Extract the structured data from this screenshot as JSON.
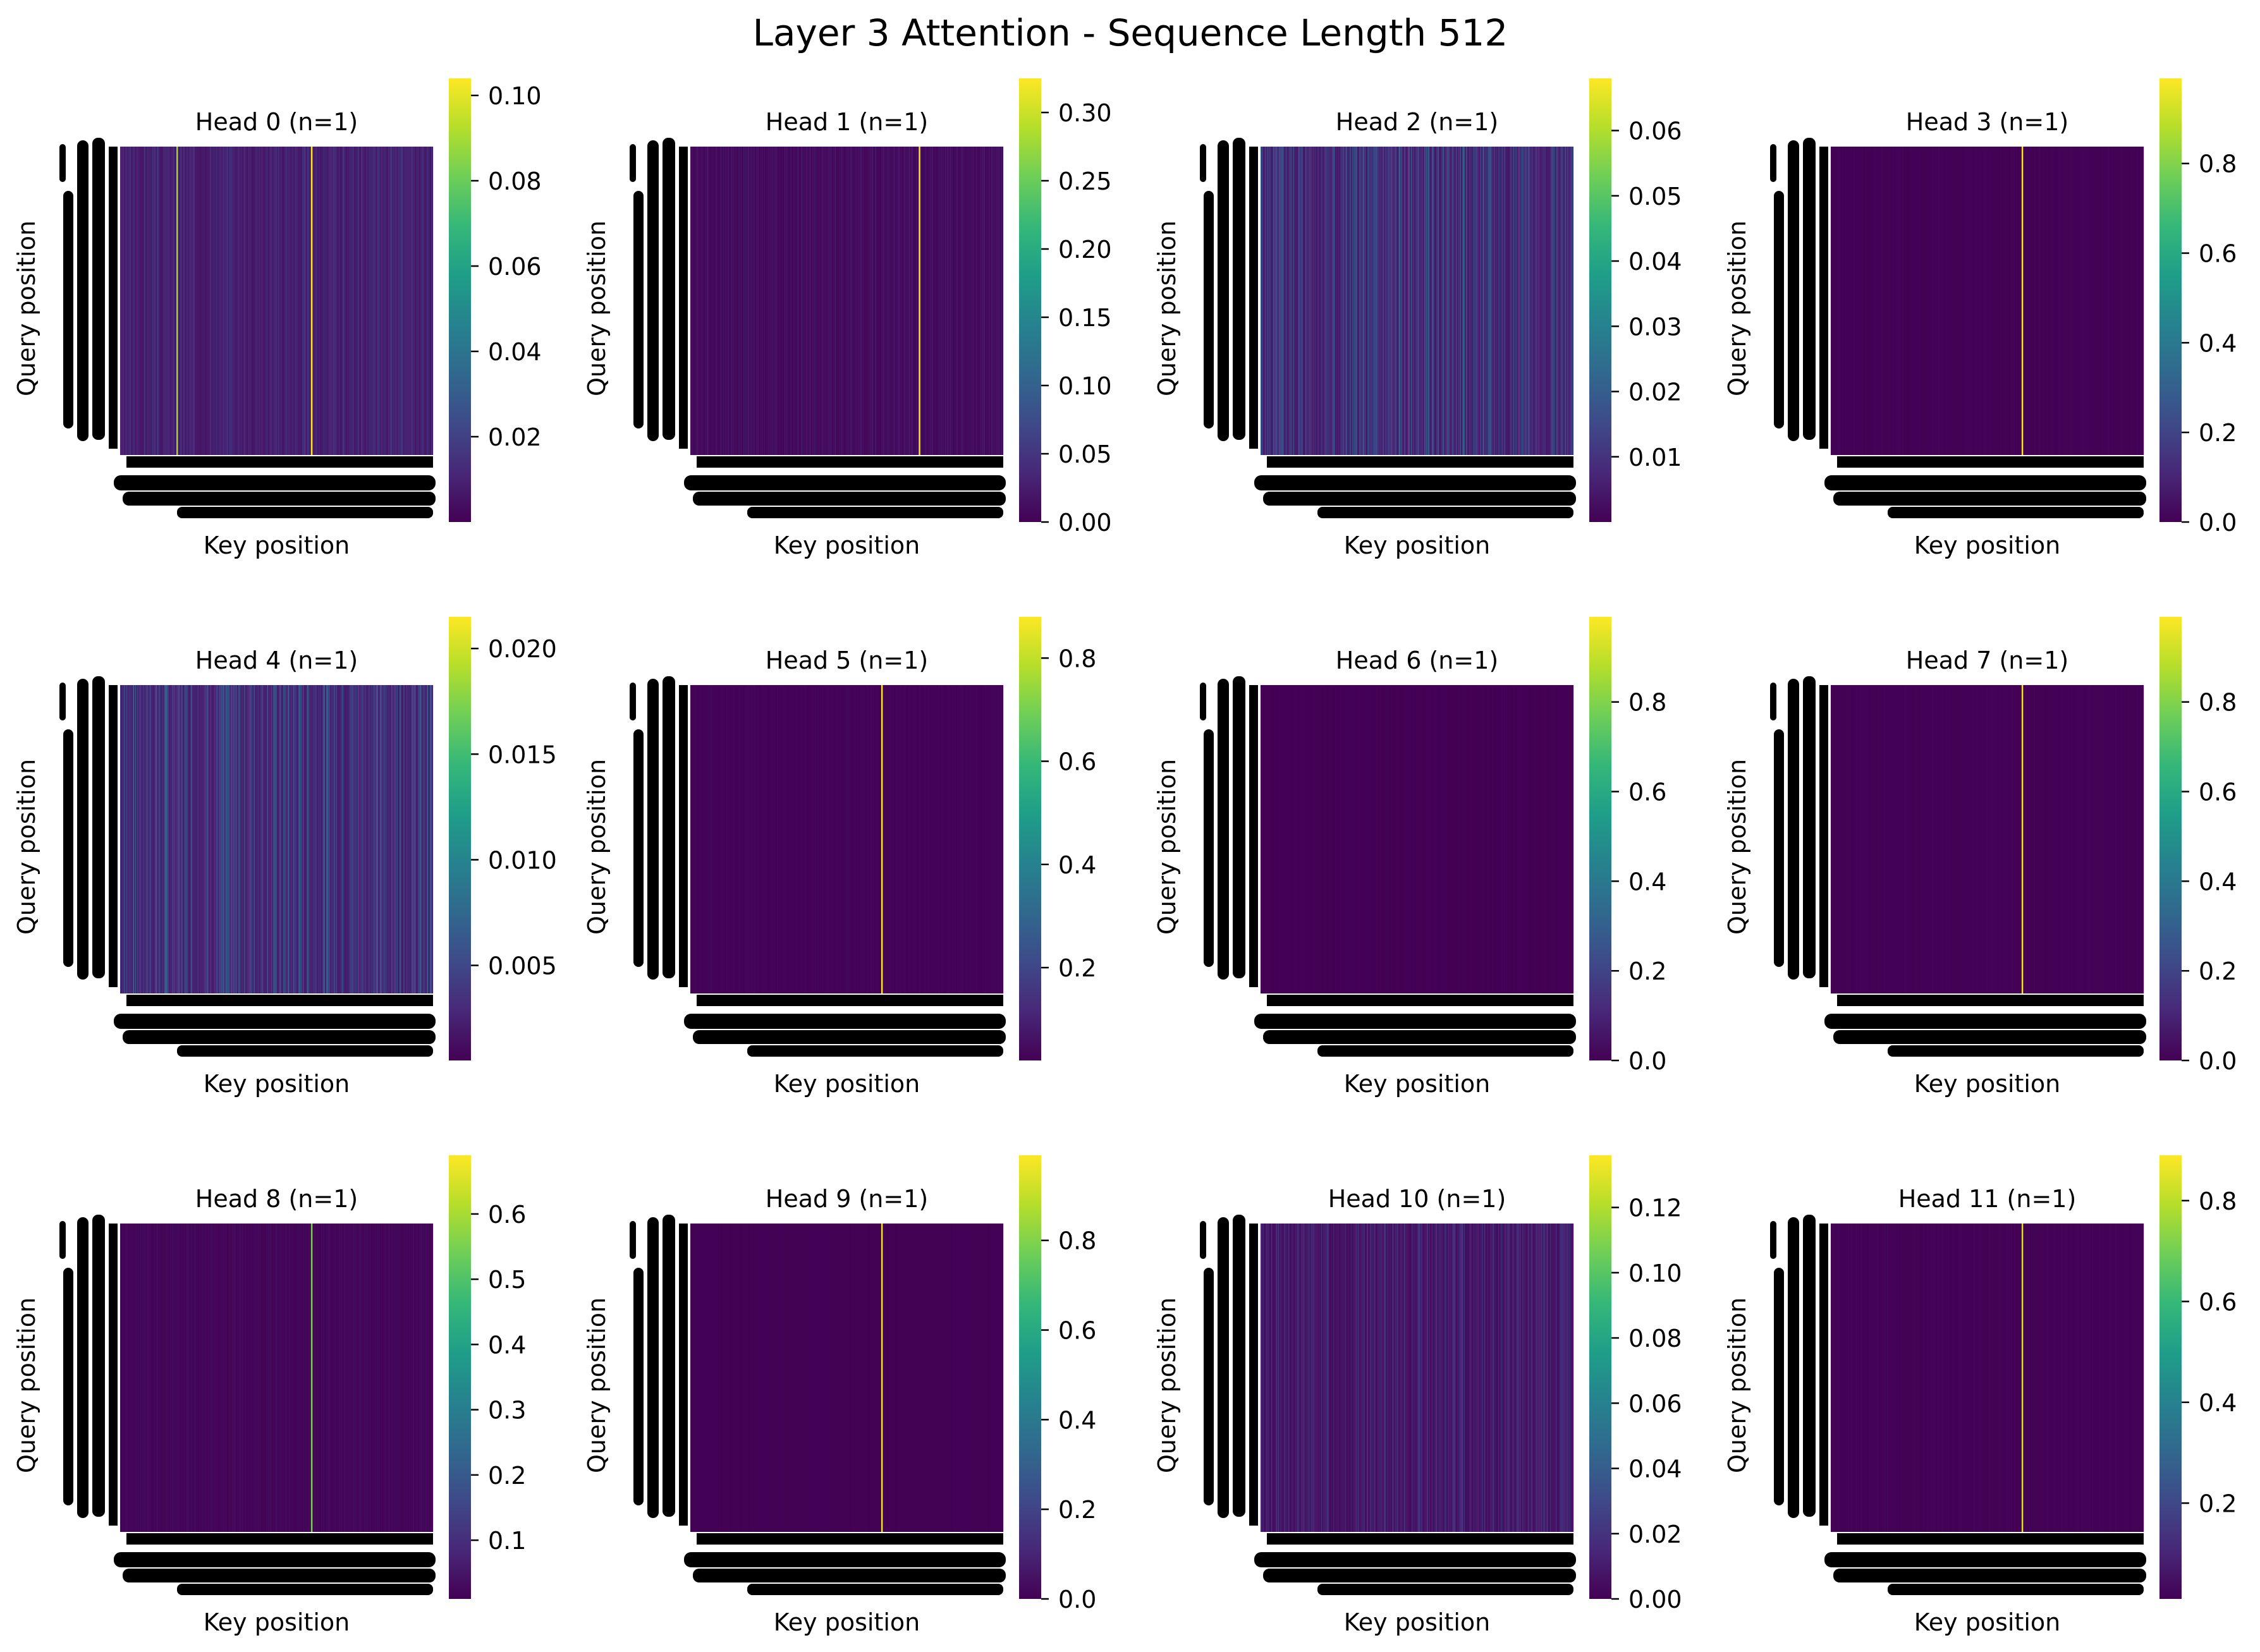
{
  "chart_data": {
    "type": "heatmap",
    "title": "Layer 3 Attention - Sequence Length 512",
    "xlabel": "Key position",
    "ylabel": "Query position",
    "colormap": "viridis",
    "colormap_stops": [
      "#440154",
      "#482878",
      "#3e4a89",
      "#31688e",
      "#26828e",
      "#1f9e89",
      "#35b779",
      "#6ece58",
      "#b5de2b",
      "#fde725"
    ],
    "grid": false,
    "heads": [
      {
        "title": "Head 0 (n=1)",
        "vmin": 0.0,
        "vmax": 0.104,
        "ticks": [
          "0.02",
          "0.04",
          "0.06",
          "0.08",
          "0.10"
        ],
        "tick_values": [
          0.02,
          0.04,
          0.06,
          0.08,
          0.1
        ],
        "base_value": 0.006,
        "stripe_spread": 0.012,
        "hot_columns": [
          {
            "pos": 0.18,
            "value": 0.09
          },
          {
            "pos": 0.61,
            "value": 0.104
          }
        ]
      },
      {
        "title": "Head 1 (n=1)",
        "vmin": 0.0,
        "vmax": 0.325,
        "ticks": [
          "0.00",
          "0.05",
          "0.10",
          "0.15",
          "0.20",
          "0.25",
          "0.30"
        ],
        "tick_values": [
          0.0,
          0.05,
          0.1,
          0.15,
          0.2,
          0.25,
          0.3
        ],
        "base_value": 0.005,
        "stripe_spread": 0.02,
        "hot_columns": [
          {
            "pos": 0.73,
            "value": 0.325
          }
        ]
      },
      {
        "title": "Head 2 (n=1)",
        "vmin": 0.0,
        "vmax": 0.068,
        "ticks": [
          "0.01",
          "0.02",
          "0.03",
          "0.04",
          "0.05",
          "0.06"
        ],
        "tick_values": [
          0.01,
          0.02,
          0.03,
          0.04,
          0.05,
          0.06
        ],
        "base_value": 0.004,
        "stripe_spread": 0.018,
        "hot_columns": []
      },
      {
        "title": "Head 3 (n=1)",
        "vmin": 0.0,
        "vmax": 0.99,
        "ticks": [
          "0.0",
          "0.2",
          "0.4",
          "0.6",
          "0.8"
        ],
        "tick_values": [
          0.0,
          0.2,
          0.4,
          0.6,
          0.8
        ],
        "base_value": 0.002,
        "stripe_spread": 0.01,
        "hot_columns": [
          {
            "pos": 0.61,
            "value": 0.99
          }
        ]
      },
      {
        "title": "Head 4 (n=1)",
        "vmin": 0.0005,
        "vmax": 0.0215,
        "ticks": [
          "0.005",
          "0.010",
          "0.015",
          "0.020"
        ],
        "tick_values": [
          0.005,
          0.01,
          0.015,
          0.02
        ],
        "base_value": 0.002,
        "stripe_spread": 0.006,
        "hot_columns": []
      },
      {
        "title": "Head 5 (n=1)",
        "vmin": 0.02,
        "vmax": 0.88,
        "ticks": [
          "0.2",
          "0.4",
          "0.6",
          "0.8"
        ],
        "tick_values": [
          0.2,
          0.4,
          0.6,
          0.8
        ],
        "base_value": 0.025,
        "stripe_spread": 0.01,
        "hot_columns": [
          {
            "pos": 0.61,
            "value": 0.88
          }
        ]
      },
      {
        "title": "Head 6 (n=1)",
        "vmin": 0.0,
        "vmax": 0.99,
        "ticks": [
          "0.0",
          "0.2",
          "0.4",
          "0.6",
          "0.8"
        ],
        "tick_values": [
          0.0,
          0.2,
          0.4,
          0.6,
          0.8
        ],
        "base_value": 0.001,
        "stripe_spread": 0.003,
        "hot_columns": []
      },
      {
        "title": "Head 7 (n=1)",
        "vmin": 0.0,
        "vmax": 0.99,
        "ticks": [
          "0.0",
          "0.2",
          "0.4",
          "0.6",
          "0.8"
        ],
        "tick_values": [
          0.0,
          0.2,
          0.4,
          0.6,
          0.8
        ],
        "base_value": 0.002,
        "stripe_spread": 0.01,
        "hot_columns": [
          {
            "pos": 0.61,
            "value": 0.97
          }
        ]
      },
      {
        "title": "Head 8 (n=1)",
        "vmin": 0.01,
        "vmax": 0.69,
        "ticks": [
          "0.1",
          "0.2",
          "0.3",
          "0.4",
          "0.5",
          "0.6"
        ],
        "tick_values": [
          0.1,
          0.2,
          0.3,
          0.4,
          0.5,
          0.6
        ],
        "base_value": 0.015,
        "stripe_spread": 0.02,
        "hot_columns": [
          {
            "pos": 0.61,
            "value": 0.55
          }
        ]
      },
      {
        "title": "Head 9 (n=1)",
        "vmin": 0.0,
        "vmax": 0.99,
        "ticks": [
          "0.0",
          "0.2",
          "0.4",
          "0.6",
          "0.8"
        ],
        "tick_values": [
          0.0,
          0.2,
          0.4,
          0.6,
          0.8
        ],
        "base_value": 0.002,
        "stripe_spread": 0.005,
        "hot_columns": [
          {
            "pos": 0.61,
            "value": 0.97
          }
        ]
      },
      {
        "title": "Head 10 (n=1)",
        "vmin": 0.0,
        "vmax": 0.136,
        "ticks": [
          "0.00",
          "0.02",
          "0.04",
          "0.06",
          "0.08",
          "0.10",
          "0.12"
        ],
        "tick_values": [
          0.0,
          0.02,
          0.04,
          0.06,
          0.08,
          0.1,
          0.12
        ],
        "base_value": 0.004,
        "stripe_spread": 0.02,
        "hot_columns": []
      },
      {
        "title": "Head 11 (n=1)",
        "vmin": 0.01,
        "vmax": 0.89,
        "ticks": [
          "0.2",
          "0.4",
          "0.6",
          "0.8"
        ],
        "tick_values": [
          0.2,
          0.4,
          0.6,
          0.8
        ],
        "base_value": 0.012,
        "stripe_spread": 0.01,
        "hot_columns": [
          {
            "pos": 0.61,
            "value": 0.85
          }
        ]
      }
    ]
  }
}
